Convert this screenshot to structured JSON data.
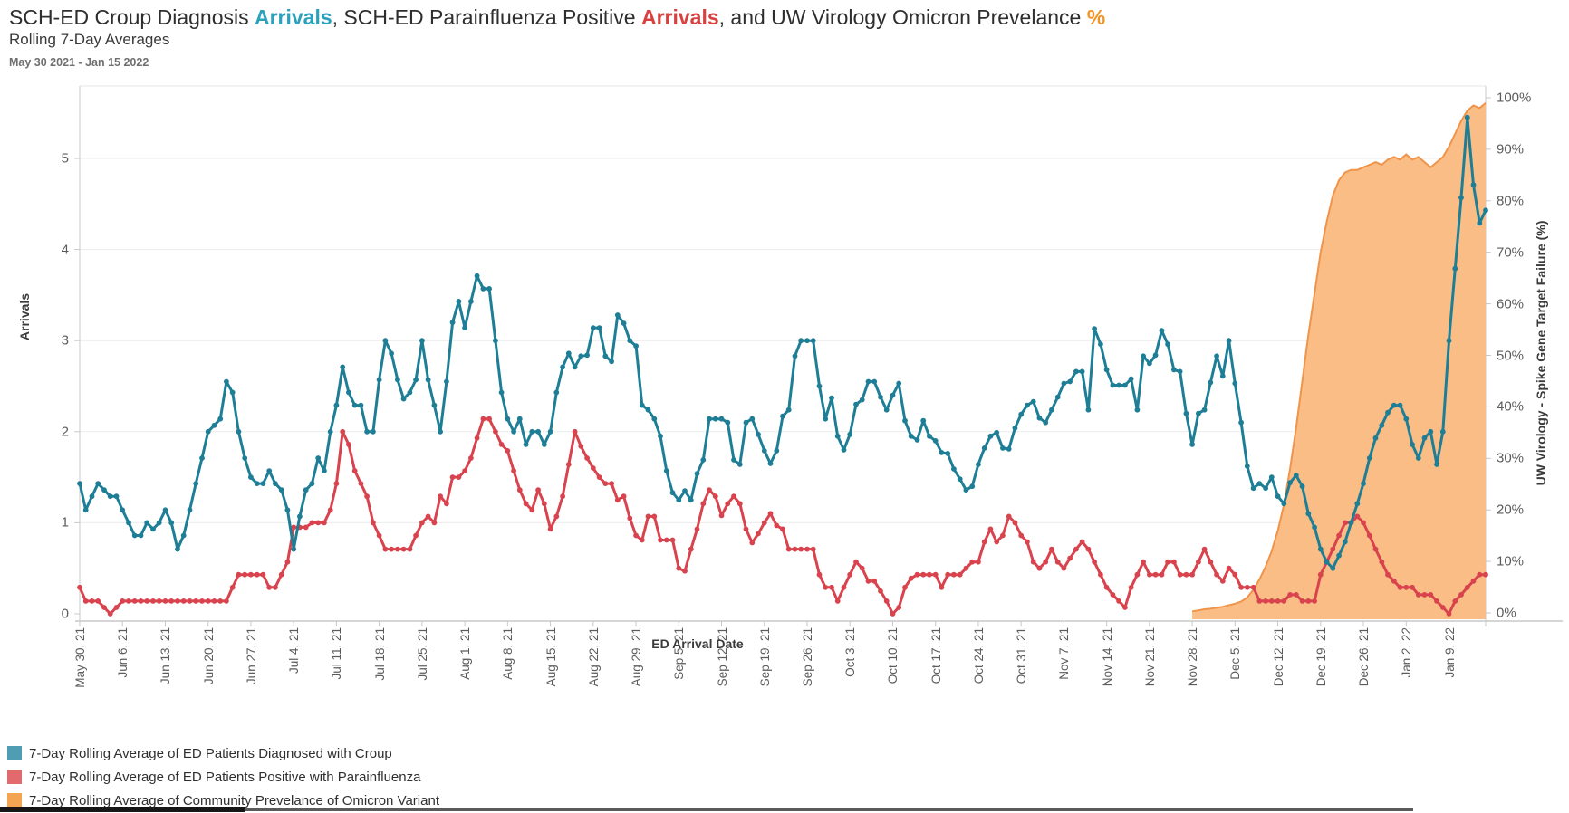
{
  "title": {
    "part1": "SCH-ED Croup Diagnosis ",
    "croup_word": "Arrivals",
    "part2": ", SCH-ED Parainfluenza Positive ",
    "para_word": "Arrivals",
    "part3": ", and UW Virology Omicron Prevelance ",
    "pct_word": "%"
  },
  "subtitle": "Rolling 7-Day Averages",
  "date_range": "May 30 2021 - Jan 15 2022",
  "colors": {
    "croup_line": "#1e7e96",
    "para_line": "#d8434e",
    "omicron_fill": "#f9bd85",
    "omicron_edge": "#ef944a",
    "legend_croup": "#4f9db3",
    "legend_para": "#e06a6e",
    "legend_omicron": "#f4a350",
    "title_croup": "#2aa2bc",
    "title_para": "#d94040",
    "title_pct": "#f39324",
    "grid": "#ececec",
    "axis": "#c9c9c9"
  },
  "axes": {
    "left_title": "Arrivals",
    "left_ticks": [
      "0",
      "1",
      "2",
      "3",
      "4",
      "5"
    ],
    "right_title": "UW Virology - Spike Gene Target Failure (%)",
    "right_ticks": [
      "0%",
      "10%",
      "20%",
      "30%",
      "40%",
      "50%",
      "60%",
      "70%",
      "80%",
      "90%",
      "100%"
    ],
    "x_title": "ED Arrival Date",
    "x_tick_labels": [
      "May 30, 21",
      "Jun 6, 21",
      "Jun 13, 21",
      "Jun 20, 21",
      "Jun 27, 21",
      "Jul 4, 21",
      "Jul 11, 21",
      "Jul 18, 21",
      "Jul 25, 21",
      "Aug 1, 21",
      "Aug 8, 21",
      "Aug 15, 21",
      "Aug 22, 21",
      "Aug 29, 21",
      "Sep 5, 21",
      "Sep 12, 21",
      "Sep 19, 21",
      "Sep 26, 21",
      "Oct 3, 21",
      "Oct 10, 21",
      "Oct 17, 21",
      "Oct 24, 21",
      "Oct 31, 21",
      "Nov 7, 21",
      "Nov 14, 21",
      "Nov 21, 21",
      "Nov 28, 21",
      "Dec 5, 21",
      "Dec 12, 21",
      "Dec 19, 21",
      "Dec 26, 21",
      "Jan 2, 22",
      "Jan 9, 22"
    ]
  },
  "chart_data": {
    "type": "line",
    "frequency": "daily",
    "start_date": "May 30, 2021",
    "end_date": "Jan 15, 2022",
    "n_days": 231,
    "left_axis_range": [
      0,
      5.8
    ],
    "right_axis_range": [
      0,
      100
    ],
    "grid": "horizontal-only",
    "legend_position": "bottom-left",
    "series": [
      {
        "name": "7-Day Rolling Average of ED Patients Diagnosed with Croup",
        "axis": "left",
        "mark": "line+markers",
        "start_index": 0,
        "values": [
          1.43,
          1.14,
          1.29,
          1.43,
          1.36,
          1.29,
          1.29,
          1.14,
          1.0,
          0.86,
          0.86,
          1.0,
          0.93,
          1.0,
          1.14,
          1.0,
          0.71,
          0.86,
          1.14,
          1.43,
          1.71,
          2.0,
          2.07,
          2.14,
          2.55,
          2.43,
          2.0,
          1.71,
          1.5,
          1.43,
          1.43,
          1.57,
          1.43,
          1.36,
          1.14,
          0.71,
          1.07,
          1.36,
          1.43,
          1.71,
          1.57,
          2.0,
          2.29,
          2.71,
          2.43,
          2.29,
          2.29,
          2.0,
          2.0,
          2.57,
          3.0,
          2.86,
          2.57,
          2.36,
          2.43,
          2.57,
          3.0,
          2.57,
          2.29,
          2.0,
          2.55,
          3.2,
          3.43,
          3.14,
          3.43,
          3.71,
          3.57,
          3.57,
          3.0,
          2.43,
          2.14,
          2.0,
          2.14,
          1.86,
          2.0,
          2.0,
          1.86,
          2.0,
          2.43,
          2.71,
          2.86,
          2.71,
          2.83,
          2.84,
          3.14,
          3.14,
          2.83,
          2.77,
          3.28,
          3.19,
          3.0,
          2.94,
          2.29,
          2.24,
          2.14,
          1.95,
          1.57,
          1.33,
          1.25,
          1.35,
          1.25,
          1.54,
          1.69,
          2.14,
          2.14,
          2.14,
          2.1,
          1.69,
          1.64,
          2.1,
          2.14,
          1.97,
          1.79,
          1.65,
          1.79,
          2.17,
          2.24,
          2.83,
          3.0,
          3.0,
          3.0,
          2.5,
          2.14,
          2.37,
          1.95,
          1.8,
          1.97,
          2.3,
          2.35,
          2.55,
          2.55,
          2.38,
          2.24,
          2.4,
          2.53,
          2.12,
          1.95,
          1.91,
          2.12,
          1.95,
          1.9,
          1.77,
          1.76,
          1.59,
          1.48,
          1.36,
          1.4,
          1.64,
          1.82,
          1.95,
          1.99,
          1.82,
          1.81,
          2.04,
          2.19,
          2.29,
          2.33,
          2.15,
          2.1,
          2.24,
          2.38,
          2.53,
          2.55,
          2.66,
          2.66,
          2.24,
          3.13,
          2.96,
          2.68,
          2.51,
          2.51,
          2.51,
          2.58,
          2.24,
          2.83,
          2.75,
          2.84,
          3.11,
          2.96,
          2.68,
          2.66,
          2.2,
          1.86,
          2.2,
          2.24,
          2.54,
          2.83,
          2.61,
          3.0,
          2.53,
          2.1,
          1.62,
          1.38,
          1.43,
          1.38,
          1.5,
          1.29,
          1.21,
          1.44,
          1.52,
          1.4,
          1.1,
          0.95,
          0.71,
          0.57,
          0.5,
          0.64,
          0.79,
          1.0,
          1.21,
          1.43,
          1.71,
          1.93,
          2.07,
          2.21,
          2.29,
          2.29,
          2.14,
          1.86,
          1.71,
          1.93,
          2.0,
          1.64,
          2.0,
          3.0,
          3.79,
          4.57,
          5.45,
          4.71,
          4.29,
          4.43
        ]
      },
      {
        "name": "7-Day Rolling Average of ED Patients Positive with Parainfluenza",
        "axis": "left",
        "mark": "line+markers",
        "start_index": 0,
        "values": [
          0.29,
          0.14,
          0.14,
          0.14,
          0.07,
          0.0,
          0.07,
          0.14,
          0.14,
          0.14,
          0.14,
          0.14,
          0.14,
          0.14,
          0.14,
          0.14,
          0.14,
          0.14,
          0.14,
          0.14,
          0.14,
          0.14,
          0.14,
          0.14,
          0.14,
          0.29,
          0.43,
          0.43,
          0.43,
          0.43,
          0.43,
          0.29,
          0.29,
          0.43,
          0.57,
          0.95,
          0.95,
          0.95,
          1.0,
          1.0,
          1.0,
          1.14,
          1.43,
          2.0,
          1.86,
          1.57,
          1.43,
          1.29,
          1.0,
          0.86,
          0.71,
          0.71,
          0.71,
          0.71,
          0.71,
          0.86,
          1.0,
          1.07,
          1.0,
          1.29,
          1.21,
          1.5,
          1.5,
          1.57,
          1.71,
          1.93,
          2.14,
          2.14,
          2.0,
          1.86,
          1.79,
          1.57,
          1.36,
          1.21,
          1.14,
          1.36,
          1.21,
          0.93,
          1.07,
          1.29,
          1.64,
          2.0,
          1.84,
          1.71,
          1.6,
          1.5,
          1.43,
          1.43,
          1.25,
          1.29,
          1.05,
          0.86,
          0.81,
          1.07,
          1.07,
          0.81,
          0.81,
          0.81,
          0.5,
          0.47,
          0.71,
          0.93,
          1.21,
          1.36,
          1.29,
          1.08,
          1.21,
          1.29,
          1.21,
          0.93,
          0.78,
          0.88,
          1.0,
          1.1,
          0.97,
          0.93,
          0.71,
          0.71,
          0.71,
          0.71,
          0.71,
          0.43,
          0.29,
          0.29,
          0.14,
          0.29,
          0.43,
          0.57,
          0.5,
          0.36,
          0.36,
          0.25,
          0.14,
          0.0,
          0.07,
          0.29,
          0.39,
          0.43,
          0.43,
          0.43,
          0.43,
          0.29,
          0.43,
          0.43,
          0.43,
          0.5,
          0.57,
          0.57,
          0.79,
          0.93,
          0.79,
          0.86,
          1.07,
          1.0,
          0.86,
          0.79,
          0.57,
          0.5,
          0.57,
          0.71,
          0.57,
          0.5,
          0.61,
          0.71,
          0.79,
          0.71,
          0.57,
          0.43,
          0.29,
          0.21,
          0.14,
          0.07,
          0.29,
          0.43,
          0.57,
          0.43,
          0.43,
          0.43,
          0.57,
          0.57,
          0.43,
          0.43,
          0.43,
          0.57,
          0.71,
          0.57,
          0.43,
          0.36,
          0.5,
          0.43,
          0.29,
          0.29,
          0.29,
          0.14,
          0.14,
          0.14,
          0.14,
          0.14,
          0.21,
          0.21,
          0.14,
          0.14,
          0.14,
          0.43,
          0.57,
          0.71,
          0.86,
          1.0,
          1.0,
          1.07,
          1.0,
          0.86,
          0.71,
          0.57,
          0.43,
          0.36,
          0.29,
          0.29,
          0.29,
          0.21,
          0.21,
          0.21,
          0.14,
          0.07,
          0.0,
          0.14,
          0.21,
          0.29,
          0.36,
          0.43,
          0.43
        ]
      },
      {
        "name": "7-Day Rolling Average of Community Prevelance of Omicron Variant",
        "axis": "right",
        "mark": "area",
        "start_index": 182,
        "values": [
          0.3,
          0.5,
          0.7,
          0.8,
          1.0,
          1.2,
          1.5,
          1.8,
          2.2,
          3.0,
          4.5,
          6.5,
          9,
          12,
          16,
          21,
          28,
          36,
          45,
          54,
          62,
          70,
          76,
          81,
          84,
          85.5,
          86,
          86,
          86.5,
          87,
          87.5,
          87,
          88,
          88.5,
          88,
          89,
          88,
          88.5,
          87.5,
          86.5,
          87.5,
          88.5,
          90.5,
          93,
          95.5,
          97.5,
          98.5,
          98,
          99
        ]
      }
    ]
  }
}
